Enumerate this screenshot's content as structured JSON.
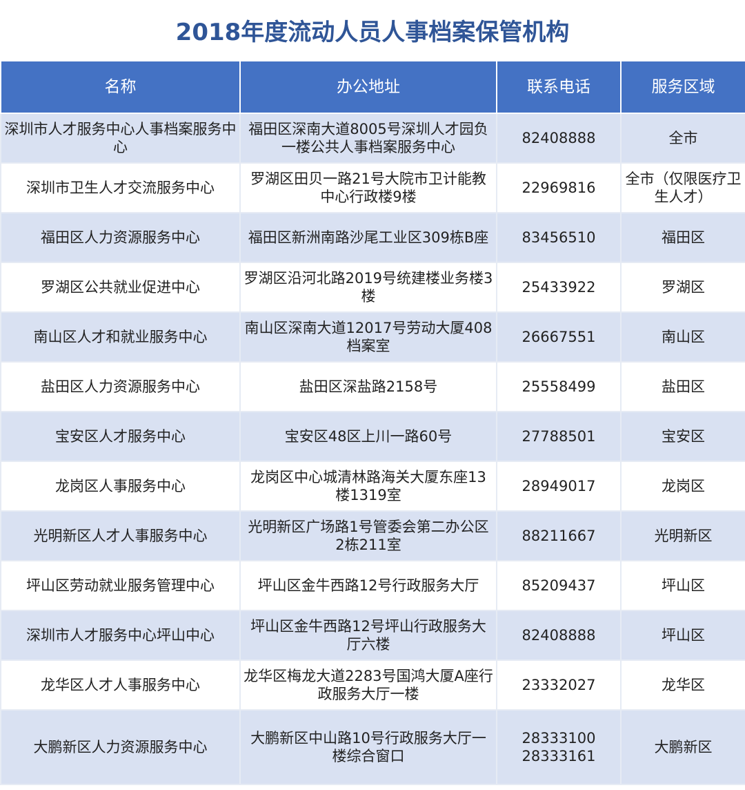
{
  "title": "2018年度流动人员人事档案保管机构",
  "headers": [
    "名称",
    "办公地址",
    "联系电话",
    "服务区域"
  ],
  "rows": [
    {
      "name": "深圳市人才服务中心人事档案服务中心",
      "address": "福田区深南大道8005号深圳人才园负一楼公共人事档案服务中心",
      "phone": [
        "82408888"
      ],
      "area": "全市"
    },
    {
      "name": "深圳市卫生人才交流服务中心",
      "address": "罗湖区田贝一路21号大院市卫计能教中心行政楼9楼",
      "phone": [
        "22969816"
      ],
      "area": "全市（仅限医疗卫生人才）"
    },
    {
      "name": "福田区人力资源服务中心",
      "address": "福田区新洲南路沙尾工业区309栋B座",
      "phone": [
        "83456510"
      ],
      "area": "福田区"
    },
    {
      "name": "罗湖区公共就业促进中心",
      "address": "罗湖区沿河北路2019号统建楼业务楼3楼",
      "phone": [
        "25433922"
      ],
      "area": "罗湖区"
    },
    {
      "name": "南山区人才和就业服务中心",
      "address": "南山区深南大道12017号劳动大厦408档案室",
      "phone": [
        "26667551"
      ],
      "area": "南山区"
    },
    {
      "name": "盐田区人力资源服务中心",
      "address": "盐田区深盐路2158号",
      "phone": [
        "25558499"
      ],
      "area": "盐田区"
    },
    {
      "name": "宝安区人才服务中心",
      "address": "宝安区48区上川一路60号",
      "phone": [
        "27788501"
      ],
      "area": "宝安区"
    },
    {
      "name": "龙岗区人事服务中心",
      "address": "龙岗区中心城清林路海关大厦东座13楼1319室",
      "phone": [
        "28949017"
      ],
      "area": "龙岗区"
    },
    {
      "name": "光明新区人才人事服务中心",
      "address": "光明新区广场路1号管委会第二办公区2栋211室",
      "phone": [
        "88211667"
      ],
      "area": "光明新区"
    },
    {
      "name": "坪山区劳动就业服务管理中心",
      "address": "坪山区金牛西路12号行政服务大厅",
      "phone": [
        "85209437"
      ],
      "area": "坪山区"
    },
    {
      "name": "深圳市人才服务中心坪山中心",
      "address": "坪山区金牛西路12号坪山行政服务大厅六楼",
      "phone": [
        "82408888"
      ],
      "area": "坪山区"
    },
    {
      "name": "龙华区人才人事服务中心",
      "address": "龙华区梅龙大道2283号国鸿大厦A座行政服务大厅一楼",
      "phone": [
        "23332027"
      ],
      "area": "龙华区"
    },
    {
      "name": "大鹏新区人力资源服务中心",
      "address": "大鹏新区中山路10号行政服务大厅一楼综合窗口",
      "phone": [
        "28333100",
        "28333161"
      ],
      "area": "大鹏新区"
    }
  ],
  "colors": {
    "title": "#2f5597",
    "header_bg": "#4472c4",
    "stripe": "#d9e1f2"
  }
}
